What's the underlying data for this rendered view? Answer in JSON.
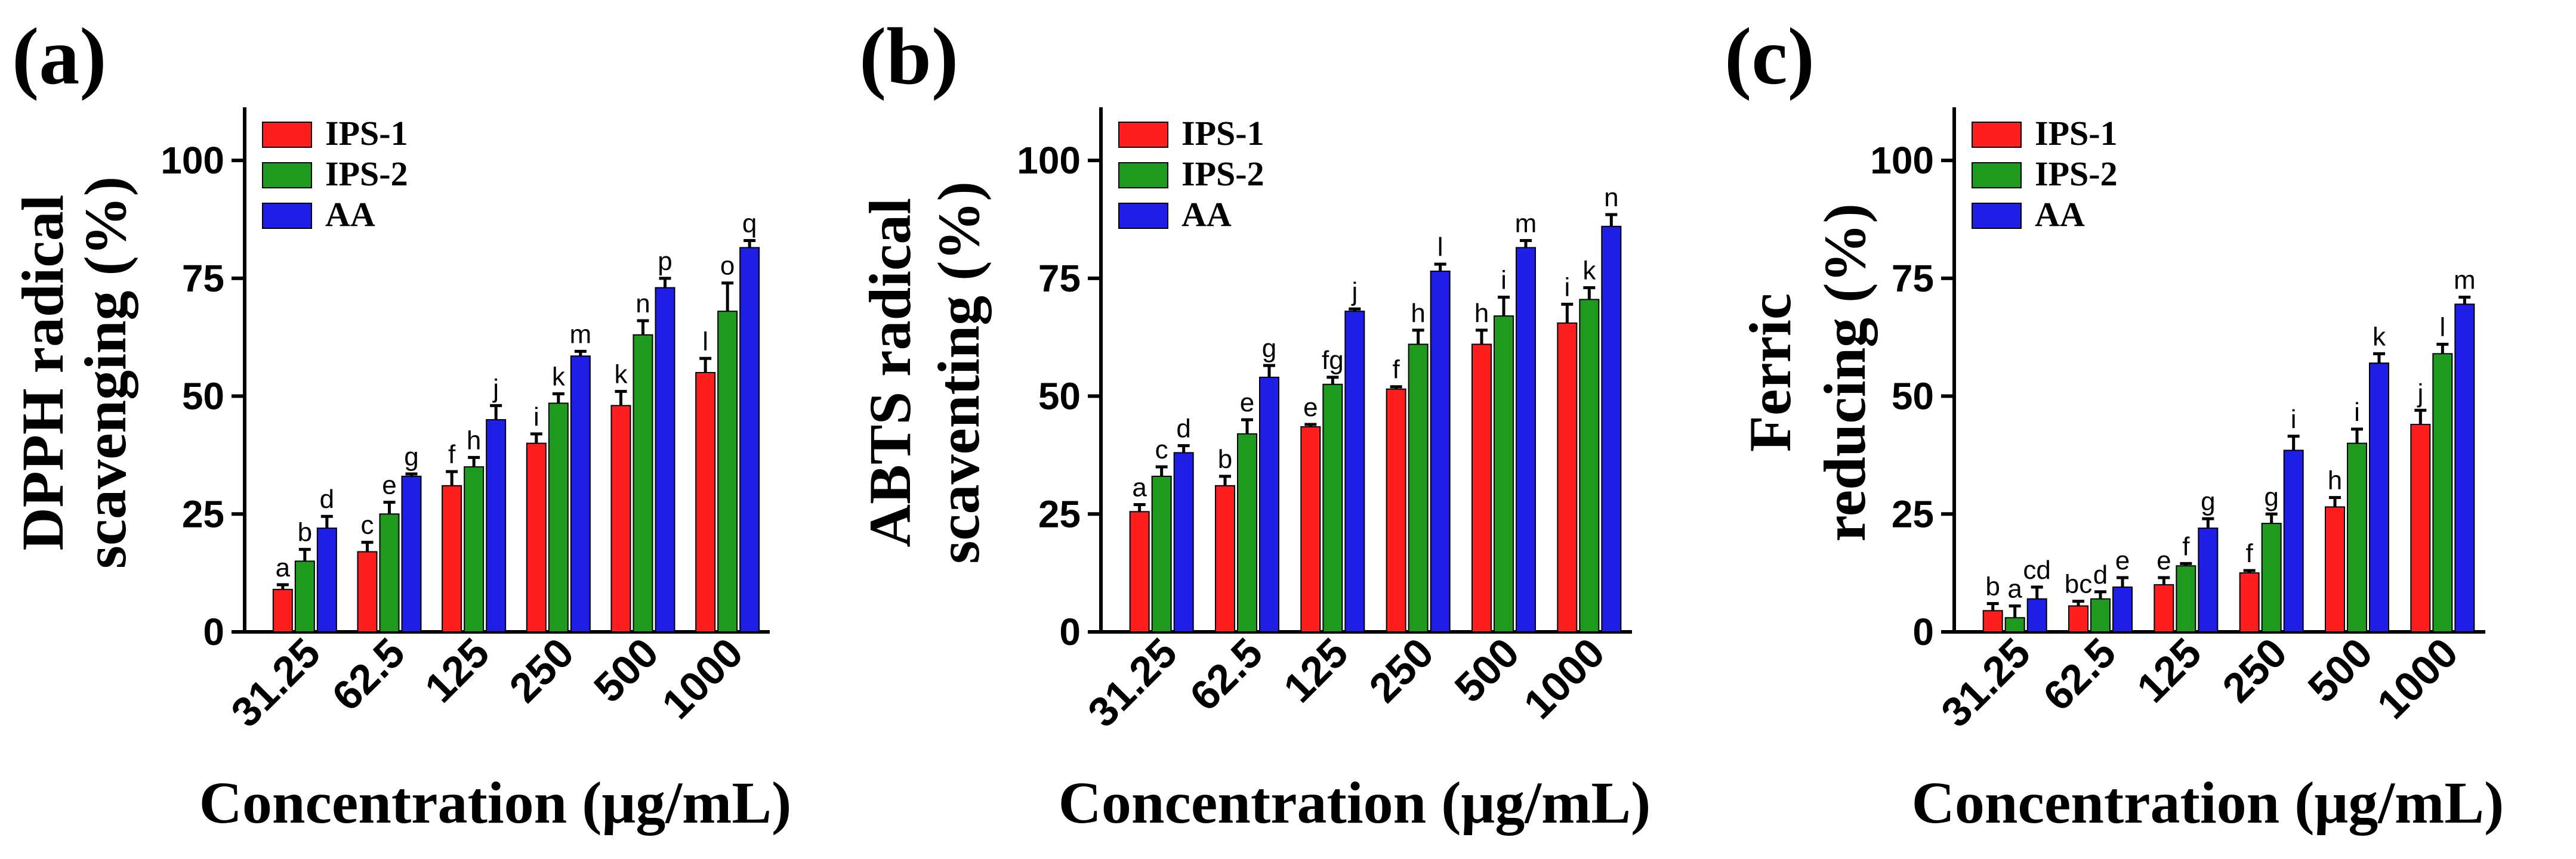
{
  "colors": {
    "ips1": "#ff1e1e",
    "ips2": "#1e9a1e",
    "aa": "#1e1ee6"
  },
  "chart_data": [
    {
      "type": "bar",
      "panel_label": "(a)",
      "ylabel_lines": [
        "DPPH radical",
        "scavenging (%)"
      ],
      "xlabel": "Concentration (μg/mL)",
      "categories": [
        "31.25",
        "62.5",
        "125",
        "250",
        "500",
        "1000"
      ],
      "ylim": [
        0,
        110
      ],
      "yticks": [
        "0",
        "25",
        "50",
        "75",
        "100"
      ],
      "legend": [
        "IPS-1",
        "IPS-2",
        "AA"
      ],
      "series": [
        {
          "name": "IPS-1",
          "values": [
            9,
            17,
            31,
            40,
            48,
            55
          ],
          "errors": [
            1,
            2,
            3,
            2,
            3,
            3
          ],
          "letters": [
            "a",
            "c",
            "f",
            "i",
            "k",
            "l"
          ]
        },
        {
          "name": "IPS-2",
          "values": [
            15,
            25,
            35,
            48.5,
            63,
            68
          ],
          "errors": [
            2.5,
            2.5,
            2,
            2,
            3,
            6
          ],
          "letters": [
            "b",
            "e",
            "h",
            "k",
            "n",
            "o"
          ]
        },
        {
          "name": "AA",
          "values": [
            22,
            33,
            45,
            58.5,
            73,
            81.5
          ],
          "errors": [
            2.5,
            0.5,
            3,
            1,
            2,
            1.5
          ],
          "letters": [
            "d",
            "g",
            "j",
            "m",
            "p",
            "q"
          ]
        }
      ]
    },
    {
      "type": "bar",
      "panel_label": "(b)",
      "ylabel_lines": [
        "ABTS radical",
        "scaventing (%)"
      ],
      "xlabel": "Concentration (μg/mL)",
      "categories": [
        "31.25",
        "62.5",
        "125",
        "250",
        "500",
        "1000"
      ],
      "ylim": [
        0,
        110
      ],
      "yticks": [
        "0",
        "25",
        "50",
        "75",
        "100"
      ],
      "legend": [
        "IPS-1",
        "IPS-2",
        "AA"
      ],
      "series": [
        {
          "name": "IPS-1",
          "values": [
            25.5,
            31,
            43.5,
            51.5,
            61,
            65.5
          ],
          "errors": [
            1.5,
            2,
            0.5,
            0.5,
            3,
            4
          ],
          "letters": [
            "a",
            "b",
            "e",
            "f",
            "h",
            "i"
          ]
        },
        {
          "name": "IPS-2",
          "values": [
            33,
            42,
            52.5,
            61,
            67,
            70.5
          ],
          "errors": [
            2,
            3,
            1.5,
            3,
            4,
            2.5
          ],
          "letters": [
            "c",
            "e",
            "fg",
            "h",
            "i",
            "k"
          ]
        },
        {
          "name": "AA",
          "values": [
            38,
            54,
            68,
            76.5,
            81.5,
            86
          ],
          "errors": [
            1.5,
            2.5,
            0.5,
            1.5,
            1.5,
            2.5
          ],
          "letters": [
            "d",
            "g",
            "j",
            "l",
            "m",
            "n"
          ]
        }
      ]
    },
    {
      "type": "bar",
      "panel_label": "(c)",
      "ylabel_lines": [
        "Ferric",
        "reducing (%)"
      ],
      "xlabel": "Concentration (μg/mL)",
      "categories": [
        "31.25",
        "62.5",
        "125",
        "250",
        "500",
        "1000"
      ],
      "ylim": [
        0,
        110
      ],
      "yticks": [
        "0",
        "25",
        "50",
        "75",
        "100"
      ],
      "legend": [
        "IPS-1",
        "IPS-2",
        "AA"
      ],
      "series": [
        {
          "name": "IPS-1",
          "values": [
            4.5,
            5.5,
            10,
            12.5,
            26.5,
            44
          ],
          "errors": [
            1.5,
            1,
            1.5,
            0.5,
            2,
            3
          ],
          "letters": [
            "b",
            "bc",
            "e",
            "f",
            "h",
            "j"
          ]
        },
        {
          "name": "IPS-2",
          "values": [
            3,
            7,
            14,
            23,
            40,
            59
          ],
          "errors": [
            2.5,
            1.5,
            0.5,
            2,
            3,
            2
          ],
          "letters": [
            "a",
            "d",
            "f",
            "g",
            "i",
            "l"
          ]
        },
        {
          "name": "AA",
          "values": [
            7,
            9.5,
            22,
            38.5,
            57,
            69.5
          ],
          "errors": [
            2.5,
            2,
            2,
            3,
            2,
            1.5
          ],
          "letters": [
            "cd",
            "e",
            "g",
            "i",
            "k",
            "m"
          ]
        }
      ]
    }
  ]
}
